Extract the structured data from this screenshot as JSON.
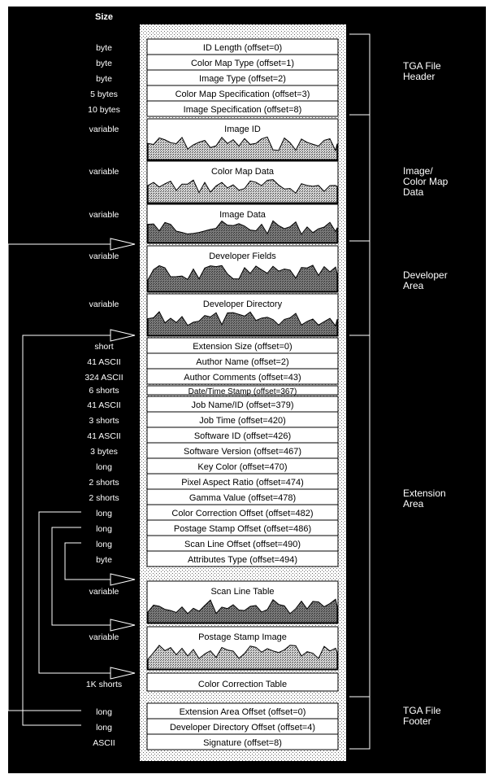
{
  "header": {
    "size_column_label": "Size"
  },
  "fields": [
    {
      "size": "byte",
      "label": "ID Length (offset=0)"
    },
    {
      "size": "byte",
      "label": "Color Map Type (offset=1)"
    },
    {
      "size": "byte",
      "label": "Image Type (offset=2)"
    },
    {
      "size": "5 bytes",
      "label": "Color Map Specification (offset=3)"
    },
    {
      "size": "10 bytes",
      "label": "Image Specification (offset=8)"
    },
    {
      "size": "variable",
      "label": "Image ID"
    },
    {
      "size": "variable",
      "label": "Color Map Data"
    },
    {
      "size": "variable",
      "label": "Image Data"
    },
    {
      "size": "variable",
      "label": "Developer Fields"
    },
    {
      "size": "variable",
      "label": "Developer Directory"
    },
    {
      "size": "short",
      "label": "Extension Size (offset=0)"
    },
    {
      "size": "41 ASCII",
      "label": "Author Name (offset=2)"
    },
    {
      "size": "324 ASCII",
      "label": "Author Comments (offset=43)"
    },
    {
      "size": "6 shorts",
      "label": "Date/Time Stamp (offset=367)"
    },
    {
      "size": "41 ASCII",
      "label": "Job Name/ID (offset=379)"
    },
    {
      "size": "3 shorts",
      "label": "Job Time (offset=420)"
    },
    {
      "size": "41 ASCII",
      "label": "Software ID (offset=426)"
    },
    {
      "size": "3 bytes",
      "label": "Software Version (offset=467)"
    },
    {
      "size": "long",
      "label": "Key Color (offset=470)"
    },
    {
      "size": "2 shorts",
      "label": "Pixel Aspect Ratio (offset=474)"
    },
    {
      "size": "2 shorts",
      "label": "Gamma Value (offset=478)"
    },
    {
      "size": "long",
      "label": "Color Correction Offset (offset=482)"
    },
    {
      "size": "long",
      "label": "Postage Stamp Offset (offset=486)"
    },
    {
      "size": "long",
      "label": "Scan Line Offset (offset=490)"
    },
    {
      "size": "byte",
      "label": "Attributes Type (offset=494)"
    },
    {
      "size": "variable",
      "label": "Scan Line Table"
    },
    {
      "size": "variable",
      "label": "Postage Stamp Image"
    },
    {
      "size": "1K shorts",
      "label": "Color Correction Table"
    },
    {
      "size": "long",
      "label": "Extension Area Offset (offset=0)"
    },
    {
      "size": "long",
      "label": "Developer Directory Offset (offset=4)"
    },
    {
      "size": "ASCII",
      "label": "Signature (offset=8)"
    }
  ],
  "sections": [
    {
      "name": "tga-file-header",
      "lines": [
        "TGA File",
        "Header"
      ]
    },
    {
      "name": "image-color-map-data",
      "lines": [
        "Image/",
        "Color Map",
        "Data"
      ]
    },
    {
      "name": "developer-area",
      "lines": [
        "Developer",
        "Area"
      ]
    },
    {
      "name": "extension-area",
      "lines": [
        "Extension",
        "Area"
      ]
    },
    {
      "name": "tga-file-footer",
      "lines": [
        "TGA File",
        "Footer"
      ]
    }
  ],
  "colors": {
    "background": "#000000",
    "cell": "#ffffff",
    "text_dark": "#000000",
    "text_light": "#ffffff",
    "hatch": "#b8b8b8"
  }
}
